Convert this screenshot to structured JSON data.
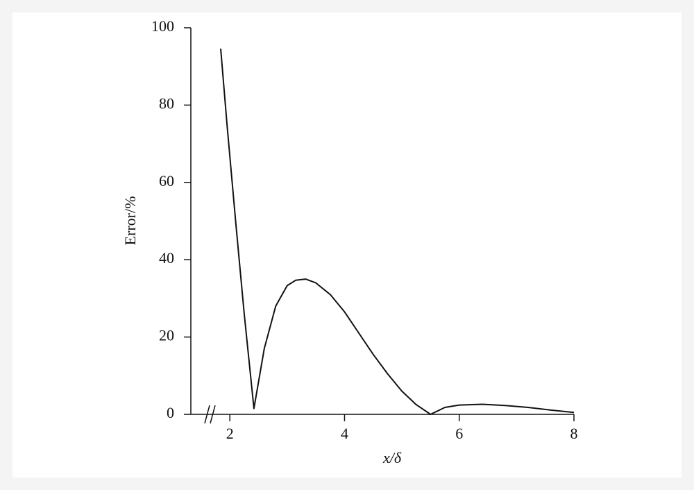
{
  "chart_data": {
    "type": "line",
    "x_label": "x/δ",
    "y_label": "Error/%",
    "x": [
      1.84,
      1.95,
      2.1,
      2.25,
      2.42,
      2.6,
      2.8,
      3.0,
      3.15,
      3.32,
      3.5,
      3.75,
      4.0,
      4.25,
      4.5,
      4.75,
      5.0,
      5.25,
      5.5,
      5.75,
      6.0,
      6.4,
      6.8,
      7.2,
      7.6,
      8.0
    ],
    "series": [
      {
        "color": "#111111",
        "values": [
          94.6,
          75,
          50,
          26,
          1.5,
          17,
          28,
          33.3,
          34.7,
          35,
          34,
          31,
          26.5,
          21,
          15.5,
          10.5,
          6,
          2.5,
          0,
          1.8,
          2.4,
          2.6,
          2.3,
          1.8,
          1.1,
          0.5
        ]
      }
    ],
    "xlim": [
      1.32,
      8
    ],
    "xticks": [
      2,
      4,
      6,
      8
    ],
    "ylim": [
      0,
      100
    ],
    "yticks": [
      0,
      20,
      40,
      60,
      80,
      100
    ],
    "grid": false
  }
}
